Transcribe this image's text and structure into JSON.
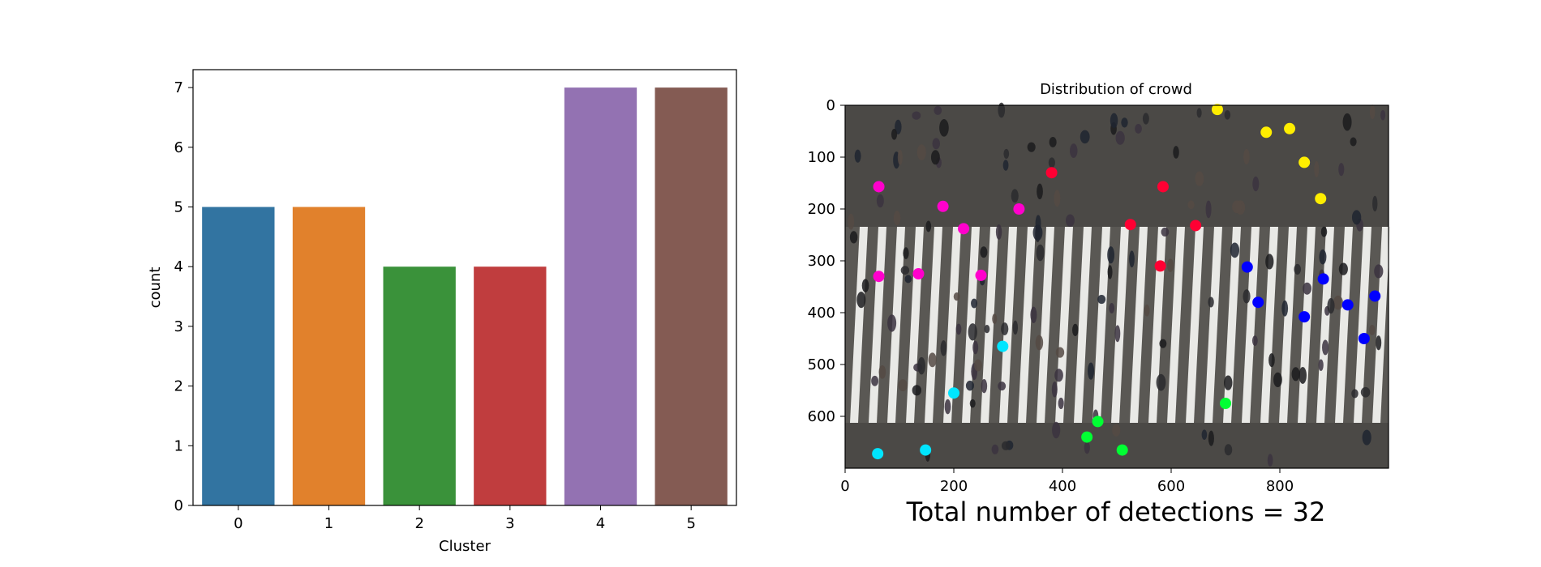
{
  "chart_data": [
    {
      "type": "bar",
      "title": "",
      "xlabel": "Cluster",
      "ylabel": "count",
      "categories": [
        "0",
        "1",
        "2",
        "3",
        "4",
        "5"
      ],
      "values": [
        5,
        5,
        4,
        4,
        7,
        7
      ],
      "colors": [
        "#3274a1",
        "#e1812c",
        "#3a923a",
        "#c03d3e",
        "#9372b2",
        "#845b53"
      ],
      "ylim": [
        0,
        7.3
      ],
      "yticks": [
        "0",
        "1",
        "2",
        "3",
        "4",
        "5",
        "6",
        "7"
      ],
      "grid": false,
      "legend": "none"
    },
    {
      "type": "scatter",
      "title": "Distribution of crowd",
      "background": "photograph of a pedestrian crosswalk viewed from above (watermarked)",
      "xlim": [
        0,
        1000
      ],
      "ylim": [
        700,
        0
      ],
      "xticks": [
        "0",
        "200",
        "400",
        "600",
        "800"
      ],
      "yticks": [
        "0",
        "100",
        "200",
        "300",
        "400",
        "500",
        "600"
      ],
      "annotation": "Total number of detections = 32",
      "series": [
        {
          "color": "#ff0033",
          "points": [
            [
              380,
              130
            ],
            [
              585,
              157
            ],
            [
              525,
              230
            ],
            [
              645,
              232
            ],
            [
              580,
              310
            ]
          ]
        },
        {
          "color": "#ff00cc",
          "points": [
            [
              62,
              157
            ],
            [
              180,
              195
            ],
            [
              218,
              238
            ],
            [
              320,
              200
            ],
            [
              62,
              330
            ],
            [
              135,
              325
            ],
            [
              250,
              328
            ]
          ]
        },
        {
          "color": "#ffee00",
          "points": [
            [
              685,
              8
            ],
            [
              775,
              52
            ],
            [
              818,
              45
            ],
            [
              845,
              110
            ],
            [
              875,
              180
            ]
          ]
        },
        {
          "color": "#0000ff",
          "points": [
            [
              740,
              312
            ],
            [
              760,
              380
            ],
            [
              880,
              335
            ],
            [
              845,
              408
            ],
            [
              925,
              385
            ],
            [
              975,
              368
            ],
            [
              955,
              450
            ]
          ]
        },
        {
          "color": "#00e5ff",
          "points": [
            [
              290,
              465
            ],
            [
              200,
              555
            ],
            [
              60,
              672
            ],
            [
              148,
              665
            ]
          ]
        },
        {
          "color": "#00ff33",
          "points": [
            [
              700,
              575
            ],
            [
              465,
              610
            ],
            [
              445,
              640
            ],
            [
              510,
              665
            ]
          ]
        }
      ]
    }
  ]
}
